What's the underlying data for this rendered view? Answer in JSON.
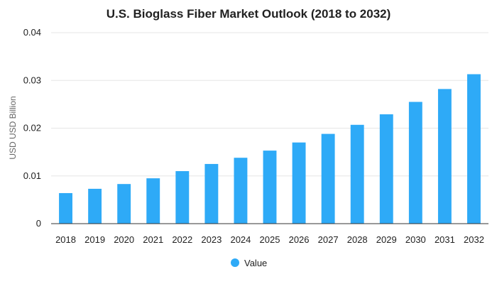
{
  "chart_data": {
    "type": "bar",
    "title": "U.S. Bioglass Fiber Market Outlook (2018 to 2032)",
    "xlabel": "",
    "ylabel": "USD USD Billion",
    "categories": [
      "2018",
      "2019",
      "2020",
      "2021",
      "2022",
      "2023",
      "2024",
      "2025",
      "2026",
      "2027",
      "2028",
      "2029",
      "2030",
      "2031",
      "2032"
    ],
    "series": [
      {
        "name": "Value",
        "color": "#2eaaf7",
        "values": [
          0.0064,
          0.0073,
          0.0083,
          0.0095,
          0.011,
          0.0125,
          0.0138,
          0.0153,
          0.017,
          0.0188,
          0.0207,
          0.0229,
          0.0255,
          0.0282,
          0.0313
        ]
      }
    ],
    "ylim": [
      0,
      0.04
    ],
    "yticks": [
      "0",
      "0.01",
      "0.02",
      "0.03",
      "0.04"
    ],
    "grid": true,
    "legend": "bottom-center"
  }
}
